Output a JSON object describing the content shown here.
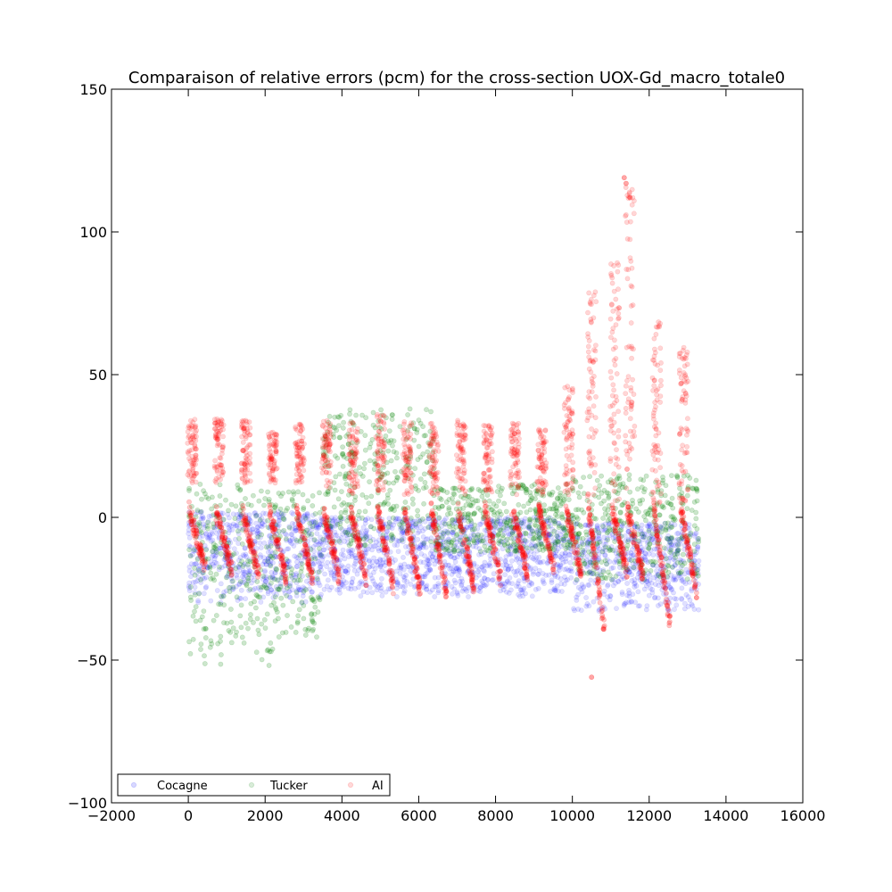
{
  "chart_data": {
    "type": "scatter",
    "title": "Comparaison of relative errors (pcm) for the cross-section UOX-Gd_macro_totale0",
    "xlabel": "",
    "ylabel": "",
    "xlim": [
      -2000,
      16000
    ],
    "ylim": [
      -100,
      150
    ],
    "x_ticks": [
      -2000,
      0,
      2000,
      4000,
      6000,
      8000,
      10000,
      12000,
      14000,
      16000
    ],
    "y_ticks": [
      -100,
      -50,
      0,
      50,
      100,
      150
    ],
    "x_tick_labels": [
      "−2000",
      "0",
      "2000",
      "4000",
      "6000",
      "8000",
      "10000",
      "12000",
      "14000",
      "16000"
    ],
    "y_tick_labels": [
      "−100",
      "−50",
      "0",
      "50",
      "100",
      "150"
    ],
    "grid": false,
    "legend_position": "lower-left",
    "x_max_data": 13300,
    "cycle_count": 20,
    "point_opacity": 0.12,
    "series": [
      {
        "name": "Cocagne",
        "color": "#0000ff",
        "band_rows": [
          {
            "x_start": 0,
            "x_end": 3300,
            "y_min": -30,
            "y_max": 2
          },
          {
            "x_start": 3300,
            "x_end": 10000,
            "y_min": -28,
            "y_max": 0
          },
          {
            "x_start": 10000,
            "x_end": 13300,
            "y_min": -33,
            "y_max": -2
          }
        ]
      },
      {
        "name": "Tucker",
        "color": "#008000",
        "band_rows": [
          {
            "x_start": 0,
            "x_end": 2200,
            "y_min": -53,
            "y_max": 12
          },
          {
            "x_start": 2200,
            "x_end": 3500,
            "y_min": -42,
            "y_max": 9
          },
          {
            "x_start": 3500,
            "x_end": 6400,
            "y_min": -10,
            "y_max": 38
          },
          {
            "x_start": 6400,
            "x_end": 10000,
            "y_min": -12,
            "y_max": 12
          },
          {
            "x_start": 10000,
            "x_end": 13300,
            "y_min": -22,
            "y_max": 15
          }
        ]
      },
      {
        "name": "AI",
        "color": "#ff0000",
        "clusters": [
          {
            "x": 100,
            "upper": [
              12,
              35
            ],
            "lower": [
              -18,
              3
            ]
          },
          {
            "x": 800,
            "upper": [
              12,
              35
            ],
            "lower": [
              -19,
              2
            ]
          },
          {
            "x": 1500,
            "upper": [
              12,
              34
            ],
            "lower": [
              -20,
              2
            ]
          },
          {
            "x": 2200,
            "upper": [
              12,
              30
            ],
            "lower": [
              -21,
              2
            ]
          },
          {
            "x": 2900,
            "upper": [
              12,
              33
            ],
            "lower": [
              -22,
              2
            ]
          },
          {
            "x": 3600,
            "upper": [
              10,
              34
            ],
            "lower": [
              -22,
              3
            ]
          },
          {
            "x": 4300,
            "upper": [
              8,
              34
            ],
            "lower": [
              -22,
              3
            ]
          },
          {
            "x": 5000,
            "upper": [
              8,
              36
            ],
            "lower": [
              -24,
              3
            ]
          },
          {
            "x": 5700,
            "upper": [
              8,
              34
            ],
            "lower": [
              -26,
              3
            ]
          },
          {
            "x": 6400,
            "upper": [
              8,
              34
            ],
            "lower": [
              -28,
              3
            ]
          },
          {
            "x": 7100,
            "upper": [
              8,
              34
            ],
            "lower": [
              -25,
              3
            ]
          },
          {
            "x": 7800,
            "upper": [
              8,
              33
            ],
            "lower": [
              -22,
              3
            ]
          },
          {
            "x": 8500,
            "upper": [
              8,
              33
            ],
            "lower": [
              -20,
              3
            ]
          },
          {
            "x": 9200,
            "upper": [
              8,
              32
            ],
            "lower": [
              -18,
              3
            ]
          },
          {
            "x": 9900,
            "upper": [
              8,
              47
            ],
            "lower": [
              -20,
              3
            ]
          },
          {
            "x": 10500,
            "upper": [
              5,
              80
            ],
            "lower": [
              -40,
              3
            ]
          },
          {
            "x": 11100,
            "upper": [
              5,
              90
            ],
            "lower": [
              -20,
              3
            ]
          },
          {
            "x": 11500,
            "upper": [
              5,
              119
            ],
            "lower": [
              -20,
              3
            ]
          },
          {
            "x": 12200,
            "upper": [
              5,
              70
            ],
            "lower": [
              -37,
              3
            ]
          },
          {
            "x": 12900,
            "upper": [
              5,
              62
            ],
            "lower": [
              -26,
              3
            ]
          }
        ],
        "outliers": [
          {
            "x": 10500,
            "y": -56
          },
          {
            "x": 11350,
            "y": 119
          },
          {
            "x": 11400,
            "y": 117
          },
          {
            "x": 11500,
            "y": 112
          }
        ]
      }
    ]
  }
}
